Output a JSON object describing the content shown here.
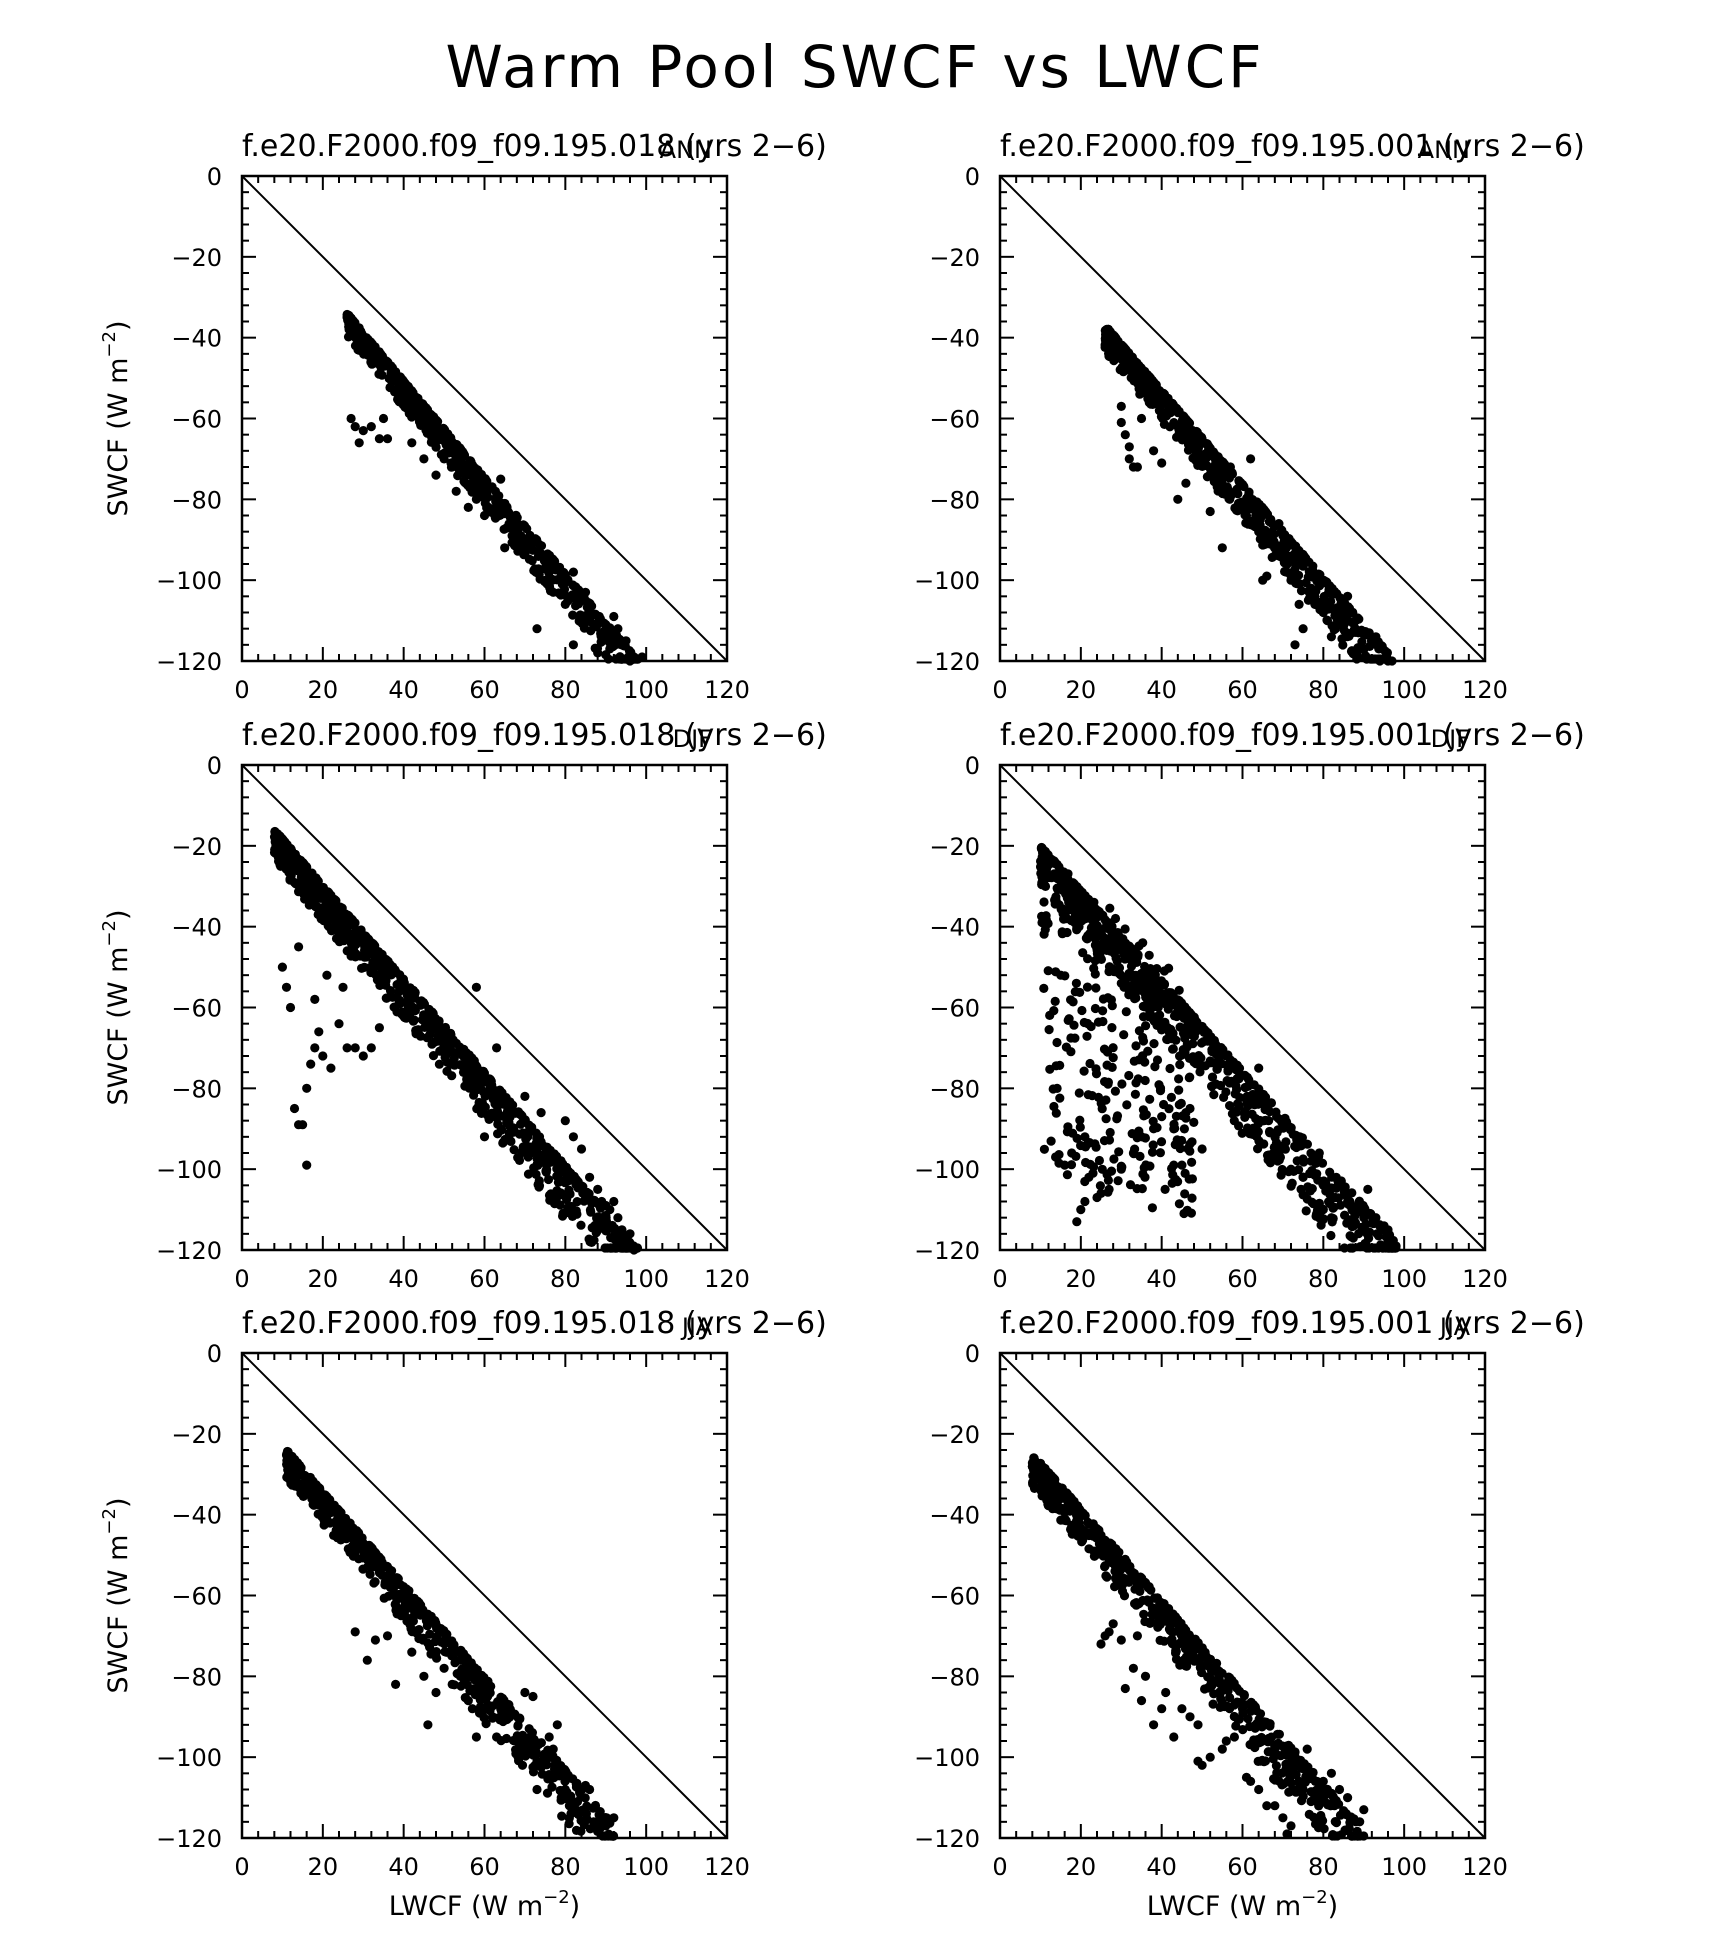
{
  "title": "Warm Pool SWCF vs LWCF",
  "axis_text": {
    "ylabel_main": "SWCF (W m",
    "xlabel_main": "LWCF (W m",
    "unit_sup": "−2",
    "unit_close": ")"
  },
  "chart_data": [
    {
      "type": "scatter",
      "title": "f.e20.F2000.f09_f09.195.018 (yrs 2−6)",
      "season": "ANN",
      "row": 0,
      "col": 0,
      "xlabel": "",
      "ylabel": "SWCF (W m−2)",
      "xlim": [
        0,
        120
      ],
      "ylim": [
        -120,
        0
      ],
      "xticks": [
        0,
        20,
        40,
        60,
        80,
        100,
        120
      ],
      "yticks": [
        0,
        -20,
        -40,
        -60,
        -80,
        -100,
        -120
      ],
      "reference_line": [
        [
          0,
          0
        ],
        [
          120,
          -120
        ]
      ],
      "cluster": {
        "x0": 26,
        "x1": 98,
        "y0": -34,
        "y1": -120,
        "width": 7,
        "count": 640,
        "seed": 11
      },
      "points": [
        [
          27,
          -60
        ],
        [
          28,
          -62
        ],
        [
          29,
          -66
        ],
        [
          30,
          -63
        ],
        [
          32,
          -62
        ],
        [
          34,
          -65
        ],
        [
          36,
          -65
        ],
        [
          35,
          -60
        ],
        [
          42,
          -66
        ],
        [
          45,
          -70
        ],
        [
          48,
          -74
        ],
        [
          50,
          -70
        ],
        [
          53,
          -78
        ],
        [
          56,
          -82
        ],
        [
          58,
          -80
        ],
        [
          60,
          -84
        ],
        [
          63,
          -83
        ],
        [
          65,
          -92
        ],
        [
          66,
          -87
        ],
        [
          69,
          -89
        ],
        [
          71,
          -92
        ],
        [
          73,
          -112
        ],
        [
          75,
          -97
        ],
        [
          77,
          -103
        ],
        [
          80,
          -106
        ],
        [
          82,
          -116
        ],
        [
          84,
          -105
        ],
        [
          85,
          -103
        ],
        [
          86,
          -110
        ],
        [
          88,
          -118
        ],
        [
          89,
          -114
        ],
        [
          90,
          -111
        ],
        [
          91,
          -117
        ],
        [
          93,
          -112
        ],
        [
          92,
          -109
        ],
        [
          95,
          -115
        ],
        [
          96,
          -120
        ],
        [
          97,
          -119
        ],
        [
          99,
          -119
        ],
        [
          82,
          -98
        ],
        [
          79,
          -100
        ],
        [
          64,
          -75
        ]
      ]
    },
    {
      "type": "scatter",
      "title": "f.e20.F2000.f09_f09.195.001 (yrs 2−6)",
      "season": "ANN",
      "row": 0,
      "col": 1,
      "xlabel": "",
      "ylabel": "",
      "xlim": [
        0,
        120
      ],
      "ylim": [
        -120,
        0
      ],
      "xticks": [
        0,
        20,
        40,
        60,
        80,
        100,
        120
      ],
      "yticks": [
        0,
        -20,
        -40,
        -60,
        -80,
        -100,
        -120
      ],
      "reference_line": [
        [
          0,
          0
        ],
        [
          120,
          -120
        ]
      ],
      "cluster": {
        "x0": 26,
        "x1": 96,
        "y0": -37,
        "y1": -118,
        "width": 8,
        "count": 680,
        "seed": 23
      },
      "points": [
        [
          30,
          -57
        ],
        [
          30,
          -61
        ],
        [
          31,
          -64
        ],
        [
          32,
          -67
        ],
        [
          32,
          -70
        ],
        [
          33,
          -72
        ],
        [
          34,
          -72
        ],
        [
          35,
          -60
        ],
        [
          38,
          -68
        ],
        [
          40,
          -71
        ],
        [
          44,
          -80
        ],
        [
          46,
          -76
        ],
        [
          52,
          -83
        ],
        [
          55,
          -92
        ],
        [
          57,
          -72
        ],
        [
          59,
          -81
        ],
        [
          61,
          -84
        ],
        [
          64,
          -88
        ],
        [
          65,
          -100
        ],
        [
          66,
          -99
        ],
        [
          67,
          -85
        ],
        [
          69,
          -86
        ],
        [
          70,
          -89
        ],
        [
          72,
          -100
        ],
        [
          73,
          -116
        ],
        [
          74,
          -106
        ],
        [
          75,
          -112
        ],
        [
          77,
          -102
        ],
        [
          78,
          -106
        ],
        [
          80,
          -108
        ],
        [
          81,
          -110
        ],
        [
          82,
          -114
        ],
        [
          83,
          -112
        ],
        [
          85,
          -109
        ],
        [
          86,
          -104
        ],
        [
          88,
          -110
        ],
        [
          90,
          -117
        ],
        [
          93,
          -114
        ],
        [
          94,
          -120
        ],
        [
          96,
          -120
        ],
        [
          97,
          -120
        ],
        [
          62,
          -70
        ]
      ]
    },
    {
      "type": "scatter",
      "title": "f.e20.F2000.f09_f09.195.018 (yrs 2−6)",
      "season": "DJF",
      "row": 1,
      "col": 0,
      "xlabel": "",
      "ylabel": "SWCF (W m−2)",
      "xlim": [
        0,
        120
      ],
      "ylim": [
        -120,
        0
      ],
      "xticks": [
        0,
        20,
        40,
        60,
        80,
        100,
        120
      ],
      "yticks": [
        0,
        -20,
        -40,
        -60,
        -80,
        -100,
        -120
      ],
      "reference_line": [
        [
          0,
          0
        ],
        [
          120,
          -120
        ]
      ],
      "cluster": {
        "x0": 8,
        "x1": 98,
        "y0": -16,
        "y1": -120,
        "width": 10,
        "count": 880,
        "seed": 37
      },
      "points": [
        [
          13,
          -85
        ],
        [
          14,
          -89
        ],
        [
          15,
          -89
        ],
        [
          16,
          -99
        ],
        [
          16,
          -80
        ],
        [
          17,
          -74
        ],
        [
          18,
          -70
        ],
        [
          19,
          -66
        ],
        [
          20,
          -72
        ],
        [
          22,
          -75
        ],
        [
          24,
          -64
        ],
        [
          26,
          -70
        ],
        [
          28,
          -70
        ],
        [
          30,
          -72
        ],
        [
          32,
          -70
        ],
        [
          34,
          -65
        ],
        [
          12,
          -60
        ],
        [
          11,
          -55
        ],
        [
          10,
          -50
        ],
        [
          14,
          -45
        ],
        [
          18,
          -58
        ],
        [
          21,
          -52
        ],
        [
          25,
          -55
        ],
        [
          58,
          -55
        ],
        [
          63,
          -70
        ],
        [
          70,
          -82
        ],
        [
          74,
          -86
        ],
        [
          80,
          -88
        ],
        [
          82,
          -92
        ],
        [
          84,
          -95
        ],
        [
          86,
          -102
        ],
        [
          88,
          -105
        ],
        [
          89,
          -108
        ],
        [
          90,
          -109
        ],
        [
          91,
          -110
        ],
        [
          92,
          -108
        ],
        [
          93,
          -112
        ],
        [
          94,
          -115
        ],
        [
          96,
          -116
        ],
        [
          97,
          -120
        ],
        [
          66,
          -92
        ],
        [
          60,
          -92
        ]
      ]
    },
    {
      "type": "scatter",
      "title": "f.e20.F2000.f09_f09.195.001 (yrs 2−6)",
      "season": "DJF",
      "row": 1,
      "col": 1,
      "xlabel": "",
      "ylabel": "",
      "xlim": [
        0,
        120
      ],
      "ylim": [
        -120,
        0
      ],
      "xticks": [
        0,
        20,
        40,
        60,
        80,
        100,
        120
      ],
      "yticks": [
        0,
        -20,
        -40,
        -60,
        -80,
        -100,
        -120
      ],
      "reference_line": [
        [
          0,
          0
        ],
        [
          120,
          -120
        ]
      ],
      "cluster": {
        "x0": 10,
        "x1": 98,
        "y0": -20,
        "y1": -118,
        "width": 13,
        "count": 780,
        "seed": 51
      },
      "fan": {
        "x0": 10,
        "x1": 48,
        "ymin": -100,
        "count": 280,
        "seed": 61
      },
      "points": [
        [
          16,
          -99
        ],
        [
          19,
          -113
        ],
        [
          20,
          -110
        ],
        [
          21,
          -108
        ],
        [
          22,
          -102
        ],
        [
          23,
          -101
        ],
        [
          24,
          -107
        ],
        [
          25,
          -106
        ],
        [
          27,
          -105
        ],
        [
          30,
          -100
        ],
        [
          33,
          -96
        ],
        [
          35,
          -92
        ],
        [
          38,
          -90
        ],
        [
          40,
          -87
        ],
        [
          43,
          -99
        ],
        [
          45,
          -99
        ],
        [
          46,
          -86
        ],
        [
          47,
          -85
        ],
        [
          50,
          -95
        ],
        [
          80,
          -110
        ],
        [
          82,
          -112
        ],
        [
          83,
          -107
        ],
        [
          84,
          -104
        ],
        [
          86,
          -108
        ],
        [
          88,
          -110
        ],
        [
          90,
          -112
        ],
        [
          91,
          -105
        ],
        [
          93,
          -112
        ],
        [
          95,
          -114
        ],
        [
          96,
          -115
        ],
        [
          98,
          -119
        ],
        [
          64,
          -75
        ],
        [
          70,
          -95
        ],
        [
          72,
          -100
        ],
        [
          75,
          -102
        ],
        [
          77,
          -98
        ],
        [
          79,
          -96
        ]
      ]
    },
    {
      "type": "scatter",
      "title": "f.e20.F2000.f09_f09.195.018 (yrs 2−6)",
      "season": "JJA",
      "row": 2,
      "col": 0,
      "xlabel": "LWCF (W m−2)",
      "ylabel": "SWCF (W m−2)",
      "xlim": [
        0,
        120
      ],
      "ylim": [
        -120,
        0
      ],
      "xticks": [
        0,
        20,
        40,
        60,
        80,
        100,
        120
      ],
      "yticks": [
        0,
        -20,
        -40,
        -60,
        -80,
        -100,
        -120
      ],
      "reference_line": [
        [
          0,
          0
        ],
        [
          120,
          -120
        ]
      ],
      "cluster": {
        "x0": 11,
        "x1": 92,
        "y0": -24,
        "y1": -117,
        "width": 9,
        "count": 640,
        "seed": 73
      },
      "points": [
        [
          28,
          -69
        ],
        [
          31,
          -76
        ],
        [
          33,
          -71
        ],
        [
          36,
          -70
        ],
        [
          38,
          -82
        ],
        [
          42,
          -74
        ],
        [
          45,
          -80
        ],
        [
          46,
          -92
        ],
        [
          48,
          -84
        ],
        [
          50,
          -78
        ],
        [
          52,
          -82
        ],
        [
          54,
          -80
        ],
        [
          56,
          -86
        ],
        [
          57,
          -88
        ],
        [
          59,
          -84
        ],
        [
          61,
          -82
        ],
        [
          62,
          -90
        ],
        [
          64,
          -88
        ],
        [
          66,
          -87
        ],
        [
          68,
          -96
        ],
        [
          70,
          -84
        ],
        [
          72,
          -85
        ],
        [
          73,
          -101
        ],
        [
          73,
          -108
        ],
        [
          75,
          -101
        ],
        [
          76,
          -95
        ],
        [
          77,
          -98
        ],
        [
          78,
          -92
        ],
        [
          79,
          -110
        ],
        [
          80,
          -108
        ],
        [
          81,
          -112
        ],
        [
          83,
          -111
        ],
        [
          85,
          -107
        ],
        [
          86,
          -108
        ],
        [
          87,
          -116
        ],
        [
          89,
          -115
        ],
        [
          90,
          -117
        ],
        [
          91,
          -116
        ],
        [
          92,
          -115
        ],
        [
          63,
          -95
        ],
        [
          69,
          -97
        ],
        [
          58,
          -95
        ]
      ]
    },
    {
      "type": "scatter",
      "title": "f.e20.F2000.f09_f09.195.001 (yrs 2−6)",
      "season": "JJA",
      "row": 2,
      "col": 1,
      "xlabel": "LWCF (W m−2)",
      "ylabel": "",
      "xlim": [
        0,
        120
      ],
      "ylim": [
        -120,
        0
      ],
      "xticks": [
        0,
        20,
        40,
        60,
        80,
        100,
        120
      ],
      "yticks": [
        0,
        -20,
        -40,
        -60,
        -80,
        -100,
        -120
      ],
      "reference_line": [
        [
          0,
          0
        ],
        [
          120,
          -120
        ]
      ],
      "cluster": {
        "x0": 8,
        "x1": 90,
        "y0": -25,
        "y1": -118,
        "width": 10,
        "count": 620,
        "seed": 89
      },
      "points": [
        [
          25,
          -72
        ],
        [
          26,
          -70
        ],
        [
          27,
          -69
        ],
        [
          28,
          -67
        ],
        [
          30,
          -71
        ],
        [
          31,
          -83
        ],
        [
          33,
          -78
        ],
        [
          34,
          -70
        ],
        [
          35,
          -86
        ],
        [
          36,
          -80
        ],
        [
          38,
          -92
        ],
        [
          40,
          -88
        ],
        [
          41,
          -84
        ],
        [
          43,
          -95
        ],
        [
          45,
          -88
        ],
        [
          47,
          -90
        ],
        [
          49,
          -92
        ],
        [
          49,
          -101
        ],
        [
          50,
          -102
        ],
        [
          52,
          -100
        ],
        [
          55,
          -98
        ],
        [
          56,
          -96
        ],
        [
          58,
          -95
        ],
        [
          60,
          -88
        ],
        [
          61,
          -105
        ],
        [
          62,
          -106
        ],
        [
          64,
          -108
        ],
        [
          66,
          -112
        ],
        [
          68,
          -112
        ],
        [
          70,
          -115
        ],
        [
          71,
          -119
        ],
        [
          72,
          -117
        ],
        [
          73,
          -102
        ],
        [
          74,
          -106
        ],
        [
          75,
          -108
        ],
        [
          76,
          -98
        ],
        [
          78,
          -106
        ],
        [
          80,
          -106
        ],
        [
          82,
          -104
        ],
        [
          84,
          -108
        ],
        [
          86,
          -110
        ],
        [
          88,
          -116
        ],
        [
          89,
          -116
        ],
        [
          90,
          -113
        ]
      ]
    }
  ]
}
